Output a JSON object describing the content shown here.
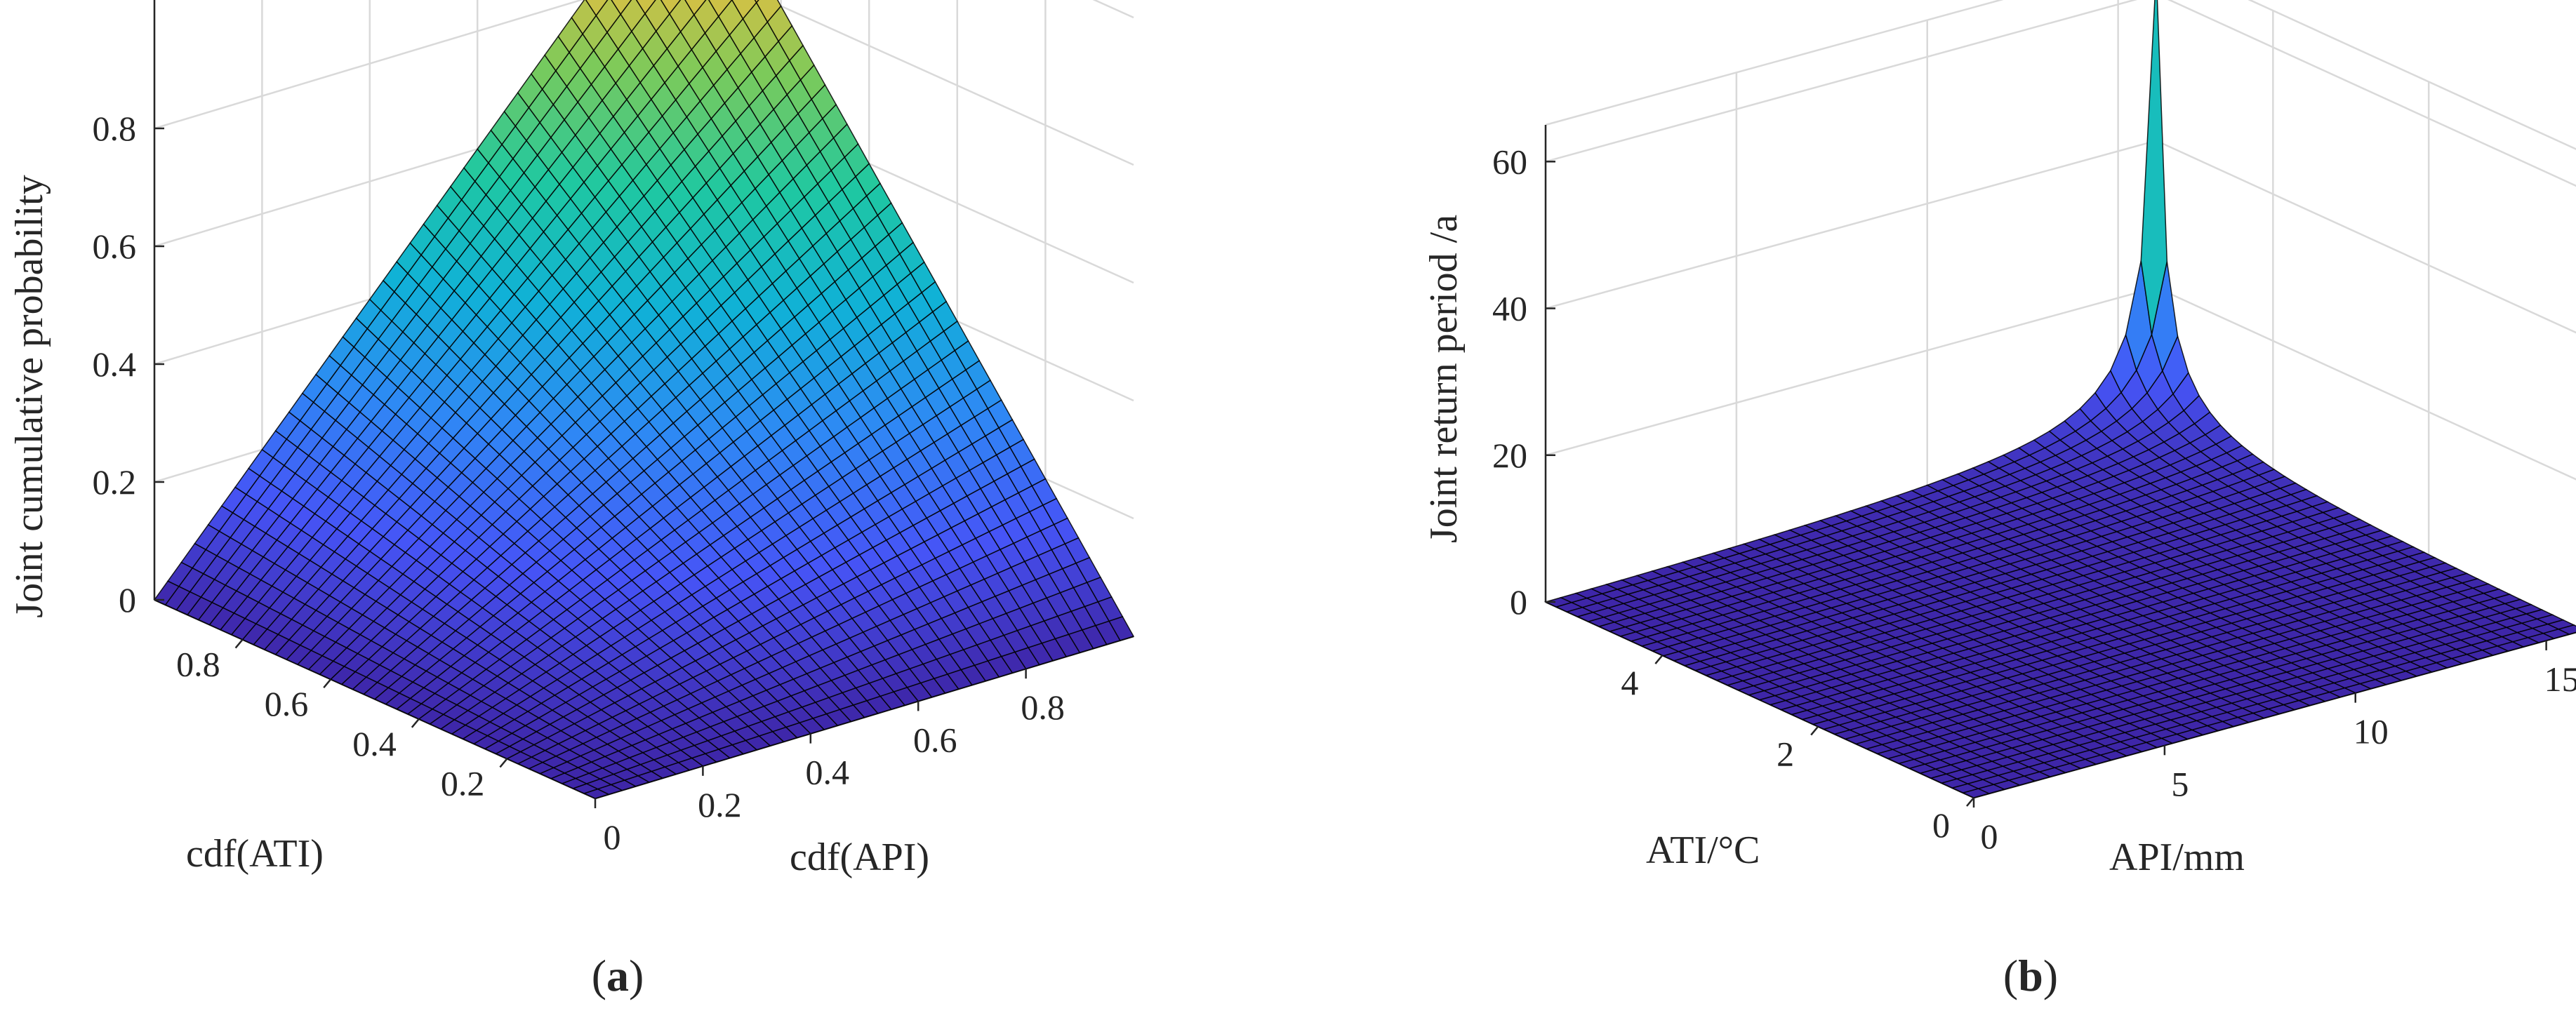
{
  "chart_data": [
    {
      "type": "surface",
      "panel_label": "a",
      "zlabel": "Joint cumulative probability",
      "xlabel": "cdf(ATI)",
      "ylabel": "cdf(API)",
      "x_ticks": [
        "0.2",
        "0.4",
        "0.6",
        "0.8"
      ],
      "y_ticks": [
        "0",
        "0.2",
        "0.4",
        "0.6",
        "0.8"
      ],
      "z_ticks": [
        "0",
        "0.2",
        "0.4",
        "0.6",
        "0.8"
      ],
      "xlim": [
        0,
        1
      ],
      "ylim": [
        0,
        1
      ],
      "zlim": [
        0,
        1
      ],
      "function": "z = u * v (joint CDF surface, 0 at origin rising to 1 at (1,1))",
      "colormap": [
        "#3e26a8",
        "#4654f6",
        "#2f88f5",
        "#10b1d7",
        "#1fc8a1",
        "#7cca5a",
        "#f7bd3c",
        "#f9fb15"
      ]
    },
    {
      "type": "surface",
      "panel_label": "b",
      "zlabel": "Joint return period /a",
      "xlabel": "ATI/°C",
      "ylabel": "API/mm",
      "x_ticks": [
        "0",
        "2",
        "4"
      ],
      "y_ticks": [
        "0",
        "5",
        "10",
        "15"
      ],
      "z_ticks": [
        "0",
        "20",
        "40",
        "60"
      ],
      "xlim": [
        0,
        5.5
      ],
      "ylim": [
        0,
        16
      ],
      "zlim": [
        0,
        65
      ],
      "peak_value": 63,
      "function": "joint return period grows from ~0 to ~63 a at maximum ATI and API",
      "colormap": [
        "#3e26a8",
        "#4654f6",
        "#2f88f5",
        "#10b1d7",
        "#1fc8a1",
        "#7cca5a",
        "#f7bd3c",
        "#f9fb15"
      ]
    }
  ],
  "captions": {
    "a_open": "(",
    "a_letter": "a",
    "a_close": ")",
    "b_open": "(",
    "b_letter": "b",
    "b_close": ")"
  }
}
